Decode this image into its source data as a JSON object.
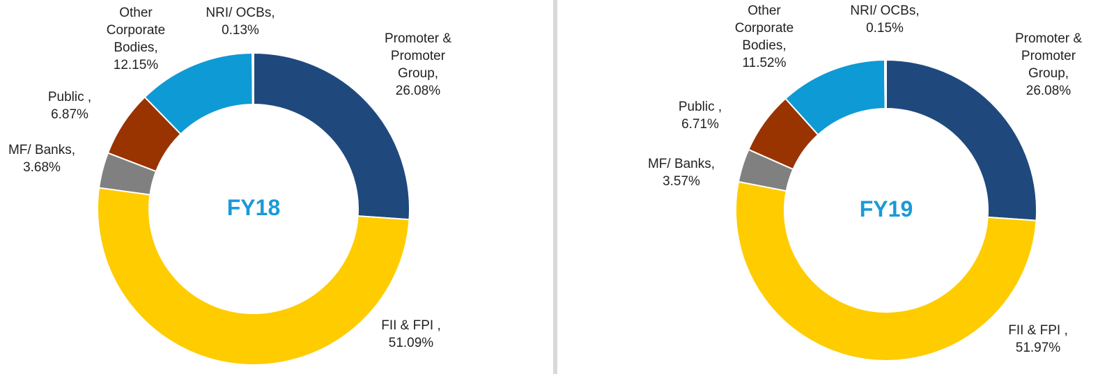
{
  "chart_data": [
    {
      "type": "pie",
      "title": "FY18",
      "categories": [
        "Promoter & Promoter Group,",
        "FII & FPI ,",
        "MF/ Banks,",
        "Public ,",
        "Other Corporate Bodies,",
        "NRI/ OCBs,"
      ],
      "values": [
        26.08,
        51.09,
        3.68,
        6.87,
        12.15,
        0.13
      ],
      "value_labels": [
        "26.08%",
        "51.09%",
        "3.68%",
        "6.87%",
        "12.15%",
        "0.13%"
      ],
      "colors": [
        "#1f497d",
        "#ffcc00",
        "#808080",
        "#993300",
        "#0e9ad4",
        "#c8c8c8"
      ]
    },
    {
      "type": "pie",
      "title": "FY19",
      "categories": [
        "Promoter & Promoter Group,",
        "FII & FPI ,",
        "MF/ Banks,",
        "Public ,",
        "Other Corporate Bodies,",
        "NRI/ OCBs,"
      ],
      "values": [
        26.08,
        51.97,
        3.57,
        6.71,
        11.52,
        0.15
      ],
      "value_labels": [
        "26.08%",
        "51.97%",
        "3.57%",
        "6.71%",
        "11.52%",
        "0.15%"
      ],
      "colors": [
        "#1f497d",
        "#ffcc00",
        "#808080",
        "#993300",
        "#0e9ad4",
        "#c8c8c8"
      ]
    }
  ]
}
